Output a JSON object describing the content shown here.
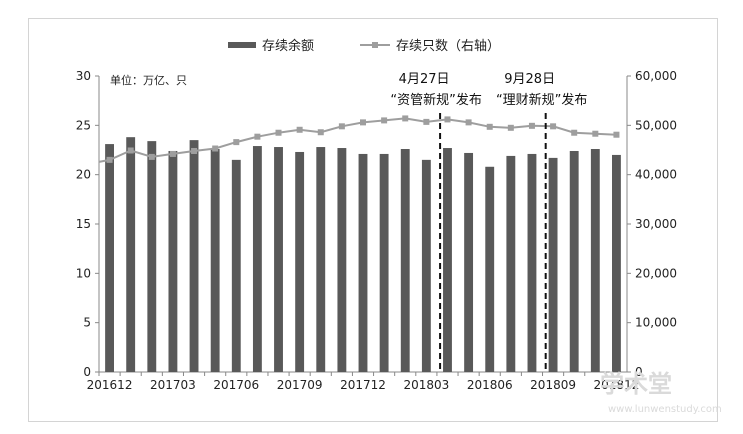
{
  "chart_data": {
    "type": "bar+line",
    "title": "",
    "unit_label": "单位：万亿、只",
    "legend": [
      {
        "label": "存续余额",
        "kind": "bar",
        "color": "#595959"
      },
      {
        "label": "存续只数（右轴）",
        "kind": "line",
        "color": "#9e9e9e"
      }
    ],
    "categories": [
      "201612",
      "201701",
      "201702",
      "201703",
      "201704",
      "201705",
      "201706",
      "201707",
      "201708",
      "201709",
      "201710",
      "201711",
      "201712",
      "201801",
      "201802",
      "201803",
      "201804",
      "201805",
      "201806",
      "201807",
      "201808",
      "201809",
      "201810",
      "201811",
      "201812"
    ],
    "x_tick_labels": [
      "201612",
      "201703",
      "201706",
      "201709",
      "201712",
      "201803",
      "201806",
      "201809",
      "201812"
    ],
    "series": [
      {
        "name": "存续余额",
        "type": "bar",
        "axis": "left",
        "values": [
          23.1,
          23.8,
          23.4,
          22.4,
          23.5,
          22.6,
          21.5,
          22.9,
          22.8,
          22.3,
          22.8,
          22.7,
          22.1,
          22.1,
          22.6,
          21.5,
          22.7,
          22.2,
          20.8,
          21.9,
          22.1,
          21.7,
          22.4,
          22.6,
          22.0
        ]
      },
      {
        "name": "存续只数（右轴）",
        "type": "line",
        "axis": "right",
        "values": [
          43000,
          44900,
          43600,
          44200,
          44800,
          45300,
          46600,
          47700,
          48500,
          49100,
          48600,
          49800,
          50600,
          51000,
          51400,
          50700,
          51200,
          50600,
          49700,
          49500,
          49900,
          49800,
          48500,
          48300,
          48100
        ]
      }
    ],
    "y_left": {
      "min": 0,
      "max": 30,
      "ticks": [
        "0",
        "5",
        "10",
        "15",
        "20",
        "25",
        "30"
      ]
    },
    "y_right": {
      "min": 0,
      "max": 60000,
      "ticks": [
        "0",
        "10,000",
        "20,000",
        "30,000",
        "40,000",
        "50,000",
        "60,000"
      ]
    },
    "annotations": [
      {
        "category": "201804",
        "line1": "4月27日",
        "line2": "“资管新规”发布"
      },
      {
        "category": "201809",
        "line1": "9月28日",
        "line2": "“理财新规”发布"
      }
    ],
    "grid": false
  },
  "watermark": {
    "main": "学术堂",
    "sub": "www.lunwenstudy.com"
  }
}
